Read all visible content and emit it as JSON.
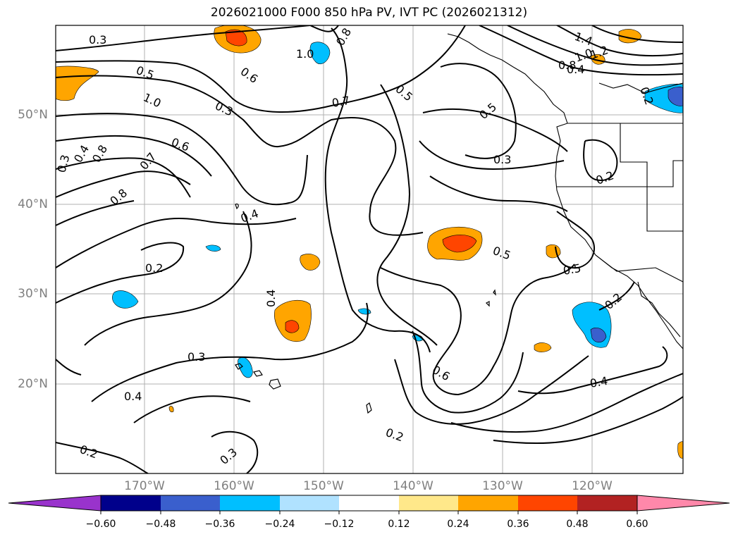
{
  "title": "2026021000 F000 850 hPa PV, IVT PC (2026021312)",
  "lat_labels": [
    "50°N",
    "40°N",
    "30°N",
    "20°N"
  ],
  "lon_labels": [
    "170°W",
    "160°W",
    "150°W",
    "140°W",
    "130°W",
    "120°W"
  ],
  "colorbar": {
    "ticks": [
      "−0.60",
      "−0.48",
      "−0.36",
      "−0.24",
      "−0.12",
      "0.12",
      "0.24",
      "0.36",
      "0.48",
      "0.60"
    ],
    "colors": [
      "#9933cc",
      "#00008b",
      "#3a5fcd",
      "#00bfff",
      "#b0e2ff",
      "#ffffff",
      "#ffe88a",
      "#ffa500",
      "#ff4500",
      "#b22222",
      "#ff88aa"
    ]
  },
  "contour_labels": [
    "0.3",
    "0.5",
    "1.0",
    "0.3",
    "0.6",
    "0.8",
    "1.0",
    "0.7",
    "0.5",
    "0.5",
    "1.4",
    "1.2",
    "1.0",
    "0.8",
    "0.4",
    "0.2",
    "0.3",
    "0.4",
    "0.8",
    "0.6",
    "0.7",
    "0.8",
    "0.3",
    "0.2",
    "0.4",
    "0.4",
    "0.2",
    "0.3",
    "0.4",
    "0.6",
    "0.5",
    "0.5",
    "0.2",
    "0.4",
    "0.2",
    "0.2",
    "0.3"
  ],
  "colors": {
    "land_border": "#000000",
    "grid": "#b0b0b0",
    "tick_label": "#7f7f7f"
  }
}
